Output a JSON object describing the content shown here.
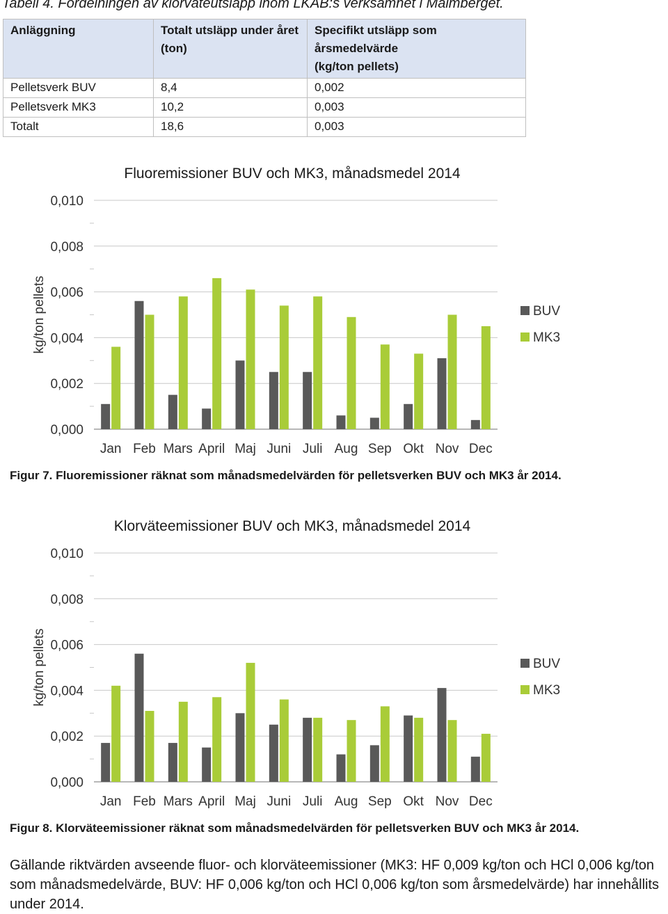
{
  "table": {
    "caption": "Tabell 4. Fördelningen av klorväteutsläpp inom LKAB:s verksamhet i Malmberget.",
    "headers": [
      [
        "Anläggning",
        ""
      ],
      [
        "Totalt utsläpp under året",
        "(ton)"
      ],
      [
        "Specifikt utsläpp som årsmedelvärde",
        "(kg/ton pellets)"
      ]
    ],
    "rows": [
      [
        "Pelletsverk BUV",
        "8,4",
        "0,002"
      ],
      [
        "Pelletsverk MK3",
        "10,2",
        "0,003"
      ],
      [
        "Totalt",
        "18,6",
        "0,003"
      ]
    ]
  },
  "charts": [
    {
      "chart_data": {
        "type": "bar",
        "title": "Fluoremissioner BUV och MK3, månadsmedel 2014",
        "ylabel": "kg/ton pellets",
        "categories": [
          "Jan",
          "Feb",
          "Mars",
          "April",
          "Maj",
          "Juni",
          "Juli",
          "Aug",
          "Sep",
          "Okt",
          "Nov",
          "Dec"
        ],
        "ylim": [
          0,
          0.01
        ],
        "yticks": [
          "0,000",
          "0,002",
          "0,004",
          "0,006",
          "0,008",
          "0,010"
        ],
        "grid": true,
        "legend_position": "right",
        "series": [
          {
            "name": "BUV",
            "color": "#595959",
            "values": [
              0.0011,
              0.0056,
              0.0015,
              0.0009,
              0.003,
              0.0025,
              0.0025,
              0.0006,
              0.0005,
              0.0011,
              0.0031,
              0.0004
            ]
          },
          {
            "name": "MK3",
            "color": "#a9cc38",
            "values": [
              0.0036,
              0.005,
              0.0058,
              0.0066,
              0.0061,
              0.0054,
              0.0058,
              0.0049,
              0.0037,
              0.0033,
              0.005,
              0.0045
            ]
          }
        ]
      },
      "caption": "Figur 7. Fluoremissioner räknat som månadsmedelvärden för pelletsverken BUV och MK3 år 2014."
    },
    {
      "chart_data": {
        "type": "bar",
        "title": "Klorväteemissioner BUV och MK3, månadsmedel 2014",
        "ylabel": "kg/ton pellets",
        "categories": [
          "Jan",
          "Feb",
          "Mars",
          "April",
          "Maj",
          "Juni",
          "Juli",
          "Aug",
          "Sep",
          "Okt",
          "Nov",
          "Dec"
        ],
        "ylim": [
          0,
          0.01
        ],
        "yticks": [
          "0,000",
          "0,002",
          "0,004",
          "0,006",
          "0,008",
          "0,010"
        ],
        "grid": true,
        "legend_position": "right",
        "series": [
          {
            "name": "BUV",
            "color": "#595959",
            "values": [
              0.0017,
              0.0056,
              0.0017,
              0.0015,
              0.003,
              0.0025,
              0.0028,
              0.0012,
              0.0016,
              0.0029,
              0.0041,
              0.0011
            ]
          },
          {
            "name": "MK3",
            "color": "#a9cc38",
            "values": [
              0.0042,
              0.0031,
              0.0035,
              0.0037,
              0.0052,
              0.0036,
              0.0028,
              0.0027,
              0.0033,
              0.0028,
              0.0027,
              0.0021
            ]
          }
        ]
      },
      "caption": "Figur 8. Klorväteemissioner räknat som månadsmedelvärden för pelletsverken BUV och MK3 år 2014."
    }
  ],
  "paragraph": "Gällande riktvärden avseende fluor- och klorväteemissioner (MK3: HF 0,009 kg/ton och HCl 0,006 kg/ton som månadsmedelvärde, BUV: HF 0,006 kg/ton och HCl 0,006 kg/ton som årsmedelvärde) har innehållits under 2014."
}
